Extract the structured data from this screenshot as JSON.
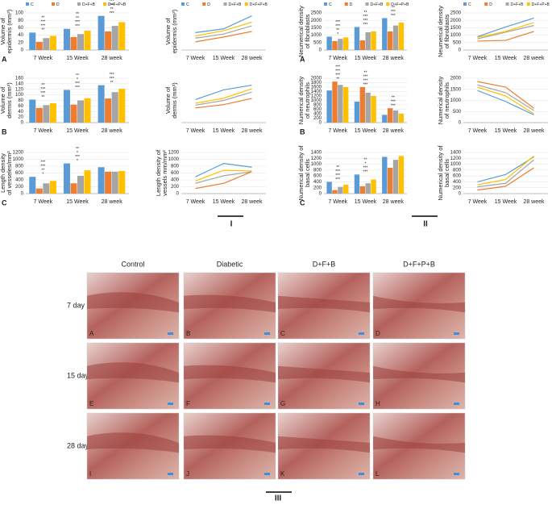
{
  "chart_data": [
    {
      "type": "bar",
      "panel": "A",
      "ylabel": "Volume of epidermis (mm³)",
      "legend": "top",
      "categories": [
        "7 Week",
        "15 Week",
        "28 week"
      ],
      "ylim": [
        0,
        100
      ],
      "yticks": [
        0,
        20,
        40,
        60,
        80,
        100
      ],
      "series": [
        {
          "name": "C",
          "color": "#5b9bd5",
          "values": [
            47,
            57,
            92
          ]
        },
        {
          "name": "D",
          "color": "#ed7d31",
          "values": [
            22,
            35,
            50
          ]
        },
        {
          "name": "D+F+B",
          "color": "#a5a5a5",
          "values": [
            32,
            43,
            65
          ]
        },
        {
          "name": "D+F+P+B",
          "color": "#ffc000",
          "values": [
            38,
            52,
            75
          ]
        }
      ],
      "annotations": [
        [
          "**",
          "***",
          "***",
          "**"
        ],
        [
          "***",
          "***",
          "**",
          "**"
        ],
        [
          "***",
          "**",
          "***",
          "***"
        ]
      ]
    },
    {
      "type": "bar",
      "panel": "B",
      "ylabel": "Volume of dermis (mm³)",
      "legend": "none",
      "categories": [
        "7 Week",
        "15 Week",
        "28 week"
      ],
      "ylim": [
        0,
        160
      ],
      "yticks": [
        0,
        20,
        40,
        60,
        80,
        100,
        120,
        140,
        160
      ],
      "series": [
        {
          "name": "C",
          "color": "#5b9bd5",
          "values": [
            83,
            118,
            135
          ]
        },
        {
          "name": "D",
          "color": "#ed7d31",
          "values": [
            53,
            65,
            87
          ]
        },
        {
          "name": "D+F+B",
          "color": "#a5a5a5",
          "values": [
            63,
            80,
            110
          ]
        },
        {
          "name": "D+F+P+B",
          "color": "#ffc000",
          "values": [
            70,
            88,
            122
          ]
        }
      ],
      "annotations": [
        [
          "**",
          "***",
          "***",
          "**"
        ],
        [
          "***",
          "***",
          "*",
          "**"
        ],
        [
          "**",
          "***",
          "***"
        ]
      ]
    },
    {
      "type": "bar",
      "panel": "C",
      "ylabel": "Length density of vesseles/mm²",
      "legend": "none",
      "categories": [
        "7 Week",
        "15 Week",
        "28 week"
      ],
      "ylim": [
        0,
        1200
      ],
      "yticks": [
        0,
        200,
        400,
        600,
        800,
        1000,
        1200
      ],
      "series": [
        {
          "name": "C",
          "color": "#5b9bd5",
          "values": [
            490,
            880,
            770
          ]
        },
        {
          "name": "D",
          "color": "#ed7d31",
          "values": [
            150,
            300,
            640
          ]
        },
        {
          "name": "D+F+B",
          "color": "#a5a5a5",
          "values": [
            300,
            520,
            640
          ]
        },
        {
          "name": "D+F+P+B",
          "color": "#ffc000",
          "values": [
            370,
            680,
            660
          ]
        }
      ],
      "annotations": [
        [
          "*",
          "**",
          "***",
          "***"
        ],
        [
          "*",
          "***",
          "*",
          "**"
        ],
        []
      ]
    },
    {
      "type": "line",
      "ylabel": "Volume of epidermis (mm³)",
      "legend": "top",
      "categories": [
        "7 Week",
        "15 Week",
        "28 week"
      ],
      "ylim": [
        0,
        100
      ],
      "series": [
        {
          "name": "C",
          "color": "#5b9bd5",
          "values": [
            47,
            57,
            92
          ]
        },
        {
          "name": "D",
          "color": "#ed7d31",
          "values": [
            22,
            35,
            50
          ]
        },
        {
          "name": "D+F+B",
          "color": "#a5a5a5",
          "values": [
            32,
            43,
            65
          ]
        },
        {
          "name": "D+F+P+B",
          "color": "#ffc000",
          "values": [
            38,
            52,
            75
          ]
        }
      ]
    },
    {
      "type": "line",
      "ylabel": "Volume of dermis (mm³)",
      "legend": "none",
      "categories": [
        "7 Week",
        "15 Week",
        "28 week"
      ],
      "ylim": [
        0,
        160
      ],
      "series": [
        {
          "name": "C",
          "color": "#5b9bd5",
          "values": [
            83,
            118,
            135
          ]
        },
        {
          "name": "D",
          "color": "#ed7d31",
          "values": [
            53,
            65,
            87
          ]
        },
        {
          "name": "D+F+B",
          "color": "#a5a5a5",
          "values": [
            63,
            80,
            110
          ]
        },
        {
          "name": "D+F+P+B",
          "color": "#ffc000",
          "values": [
            70,
            88,
            122
          ]
        }
      ]
    },
    {
      "type": "line",
      "ylabel": "Length density of vessels mm/mm²",
      "legend": "none",
      "categories": [
        "7 Week",
        "15 Week",
        "28 week"
      ],
      "ylim": [
        0,
        1200
      ],
      "yticks": [
        0,
        200,
        400,
        600,
        800,
        1000,
        1200
      ],
      "series": [
        {
          "name": "C",
          "color": "#5b9bd5",
          "values": [
            490,
            880,
            770
          ]
        },
        {
          "name": "D",
          "color": "#ed7d31",
          "values": [
            150,
            300,
            640
          ]
        },
        {
          "name": "D+F+B",
          "color": "#a5a5a5",
          "values": [
            300,
            520,
            640
          ]
        },
        {
          "name": "D+F+P+B",
          "color": "#ffc000",
          "values": [
            370,
            680,
            660
          ]
        }
      ]
    },
    {
      "type": "bar",
      "panel": "A",
      "ylabel": "Neumerical density of fibroblasts",
      "legend": "top",
      "categories": [
        "7 Week",
        "15 Week",
        "28 week"
      ],
      "ylim": [
        0,
        2500
      ],
      "yticks": [
        0,
        500,
        1000,
        1500,
        2000,
        2500
      ],
      "series": [
        {
          "name": "C",
          "color": "#5b9bd5",
          "values": [
            900,
            1550,
            2150
          ]
        },
        {
          "name": "D",
          "color": "#ed7d31",
          "values": [
            600,
            650,
            1250
          ]
        },
        {
          "name": "D+F+B",
          "color": "#a5a5a5",
          "values": [
            750,
            1200,
            1650
          ]
        },
        {
          "name": "D+F+P+B",
          "color": "#ffc000",
          "values": [
            850,
            1250,
            1850
          ]
        }
      ],
      "annotations": [
        [
          "*",
          "**",
          "***",
          "***"
        ],
        [
          "***",
          "***",
          "***",
          "**"
        ],
        [
          "***",
          "***",
          "**"
        ]
      ]
    },
    {
      "type": "bar",
      "panel": "B",
      "ylabel": "Numerical density of neutrophils",
      "legend": "none",
      "categories": [
        "7 Week",
        "15 Week",
        "28 week"
      ],
      "ylim": [
        0,
        2000
      ],
      "yticks": [
        0,
        200,
        400,
        600,
        800,
        1000,
        1200,
        1400,
        1600,
        1800,
        2000
      ],
      "series": [
        {
          "name": "C",
          "color": "#5b9bd5",
          "values": [
            1450,
            950,
            350
          ]
        },
        {
          "name": "D",
          "color": "#ed7d31",
          "values": [
            1850,
            1600,
            650
          ]
        },
        {
          "name": "D+F+B",
          "color": "#a5a5a5",
          "values": [
            1700,
            1350,
            550
          ]
        },
        {
          "name": "D+F+P+B",
          "color": "#ffc000",
          "values": [
            1600,
            1200,
            400
          ]
        }
      ],
      "annotations": [
        [
          "**",
          "***",
          "***",
          "***"
        ],
        [
          "***",
          "***",
          "***",
          "**"
        ],
        [
          "***",
          "***",
          "**"
        ]
      ]
    },
    {
      "type": "bar",
      "panel": "C",
      "ylabel": "Numerical density of basal cells",
      "legend": "none",
      "categories": [
        "7 Week",
        "15 Week",
        "28 week"
      ],
      "ylim": [
        0,
        1400
      ],
      "yticks": [
        0,
        200,
        400,
        600,
        800,
        1000,
        1200,
        1400
      ],
      "series": [
        {
          "name": "C",
          "color": "#5b9bd5",
          "values": [
            400,
            650,
            1250
          ]
        },
        {
          "name": "D",
          "color": "#ed7d31",
          "values": [
            120,
            250,
            880
          ]
        },
        {
          "name": "D+F+B",
          "color": "#a5a5a5",
          "values": [
            230,
            350,
            1150
          ]
        },
        {
          "name": "D+F+P+B",
          "color": "#ffc000",
          "values": [
            300,
            480,
            1280
          ]
        }
      ],
      "annotations": [
        [
          "***",
          "***",
          "***",
          "**"
        ],
        [
          "***",
          "***",
          "*",
          "**"
        ],
        []
      ]
    },
    {
      "type": "line",
      "ylabel": "Neumerical density of fibroblasts",
      "legend": "top",
      "categories": [
        "7 Week",
        "15 Week",
        "28 week"
      ],
      "ylim": [
        0,
        2500
      ],
      "yticks": [
        0,
        500,
        1000,
        1500,
        2000,
        2500
      ],
      "series": [
        {
          "name": "C",
          "color": "#5b9bd5",
          "values": [
            900,
            1550,
            2150
          ]
        },
        {
          "name": "D",
          "color": "#ed7d31",
          "values": [
            600,
            650,
            1250
          ]
        },
        {
          "name": "D+F+B",
          "color": "#a5a5a5",
          "values": [
            750,
            1200,
            1650
          ]
        },
        {
          "name": "D+F+P+B",
          "color": "#ffc000",
          "values": [
            850,
            1250,
            1850
          ]
        }
      ]
    },
    {
      "type": "line",
      "ylabel": "Numerical density of neutrophils",
      "legend": "none",
      "categories": [
        "7 Week",
        "15 Week",
        "28 week"
      ],
      "ylim": [
        0,
        2000
      ],
      "yticks": [
        0,
        500,
        1000,
        1500,
        2000
      ],
      "series": [
        {
          "name": "C",
          "color": "#5b9bd5",
          "values": [
            1450,
            950,
            350
          ]
        },
        {
          "name": "D",
          "color": "#ed7d31",
          "values": [
            1850,
            1600,
            650
          ]
        },
        {
          "name": "D+F+B",
          "color": "#a5a5a5",
          "values": [
            1700,
            1350,
            550
          ]
        },
        {
          "name": "D+F+P+B",
          "color": "#ffc000",
          "values": [
            1600,
            1200,
            400
          ]
        }
      ]
    },
    {
      "type": "line",
      "ylabel": "Numerical density of basal cells",
      "legend": "none",
      "categories": [
        "7 Week",
        "15 Week",
        "28 week"
      ],
      "ylim": [
        0,
        1400
      ],
      "yticks": [
        0,
        200,
        400,
        600,
        800,
        1000,
        1200,
        1400
      ],
      "series": [
        {
          "name": "C",
          "color": "#5b9bd5",
          "values": [
            400,
            650,
            1250
          ]
        },
        {
          "name": "D",
          "color": "#ed7d31",
          "values": [
            120,
            250,
            880
          ]
        },
        {
          "name": "D+F+B",
          "color": "#a5a5a5",
          "values": [
            230,
            350,
            1150
          ]
        },
        {
          "name": "D+F+P+B",
          "color": "#ffc000",
          "values": [
            300,
            480,
            1280
          ]
        }
      ]
    }
  ],
  "figure": {
    "parts": [
      "I",
      "II",
      "III"
    ],
    "histology": {
      "columns": [
        "Control",
        "Diabetic",
        "D+F+B",
        "D+F+P+B"
      ],
      "rows": [
        "7 day",
        "15 day",
        "28 day"
      ],
      "panels": [
        "A",
        "B",
        "C",
        "D",
        "E",
        "F",
        "G",
        "H",
        "I",
        "J",
        "K",
        "L"
      ]
    }
  }
}
